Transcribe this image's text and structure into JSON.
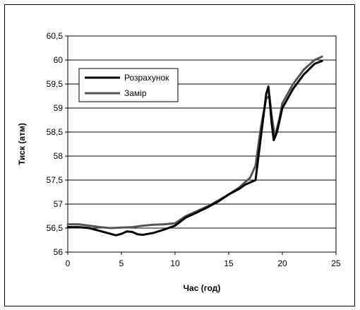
{
  "chart_data": {
    "type": "line",
    "title": "",
    "xlabel": "Час (год)",
    "ylabel": "Тиск (атм)",
    "xlim": [
      0,
      25
    ],
    "ylim": [
      56,
      60.5
    ],
    "x_ticks": [
      "0",
      "5",
      "10",
      "15",
      "20",
      "25"
    ],
    "y_ticks": [
      "56",
      "56,5",
      "57",
      "57,5",
      "58",
      "58,5",
      "59",
      "59,5",
      "60",
      "60,5"
    ],
    "grid": "horizontal",
    "legend_position": "top-left",
    "series": [
      {
        "name": "Розрахунок",
        "color": "#000000",
        "x": [
          0,
          1,
          2,
          3,
          4,
          4.5,
          5,
          5.5,
          6,
          6.5,
          7,
          8,
          9,
          10,
          11,
          12,
          13,
          14,
          15,
          16,
          16.5,
          17,
          17.5,
          18,
          18.5,
          18.7,
          19,
          19.2,
          19.5,
          20,
          21,
          22,
          23,
          23.7
        ],
        "y": [
          56.52,
          56.52,
          56.5,
          56.44,
          56.38,
          56.35,
          56.38,
          56.43,
          56.42,
          56.37,
          56.36,
          56.4,
          56.47,
          56.55,
          56.72,
          56.82,
          56.93,
          57.05,
          57.2,
          57.32,
          57.4,
          57.45,
          57.5,
          58.4,
          59.3,
          59.45,
          58.7,
          58.33,
          58.5,
          59.0,
          59.4,
          59.7,
          59.92,
          59.98
        ]
      },
      {
        "name": "Замір",
        "color": "#555555",
        "x": [
          0,
          1,
          2,
          3,
          4,
          5,
          6,
          7,
          8,
          9,
          10,
          11,
          12,
          13,
          14,
          15,
          16,
          17,
          17.5,
          18,
          18.5,
          18.8,
          19,
          19.3,
          19.7,
          20,
          21,
          22,
          23,
          23.7
        ],
        "y": [
          56.58,
          56.58,
          56.55,
          56.52,
          56.5,
          56.51,
          56.52,
          56.55,
          56.57,
          56.58,
          56.6,
          56.75,
          56.85,
          56.95,
          57.07,
          57.2,
          57.35,
          57.55,
          57.8,
          58.6,
          59.2,
          59.25,
          58.85,
          58.4,
          58.75,
          59.1,
          59.5,
          59.8,
          60.0,
          60.07
        ]
      }
    ]
  }
}
